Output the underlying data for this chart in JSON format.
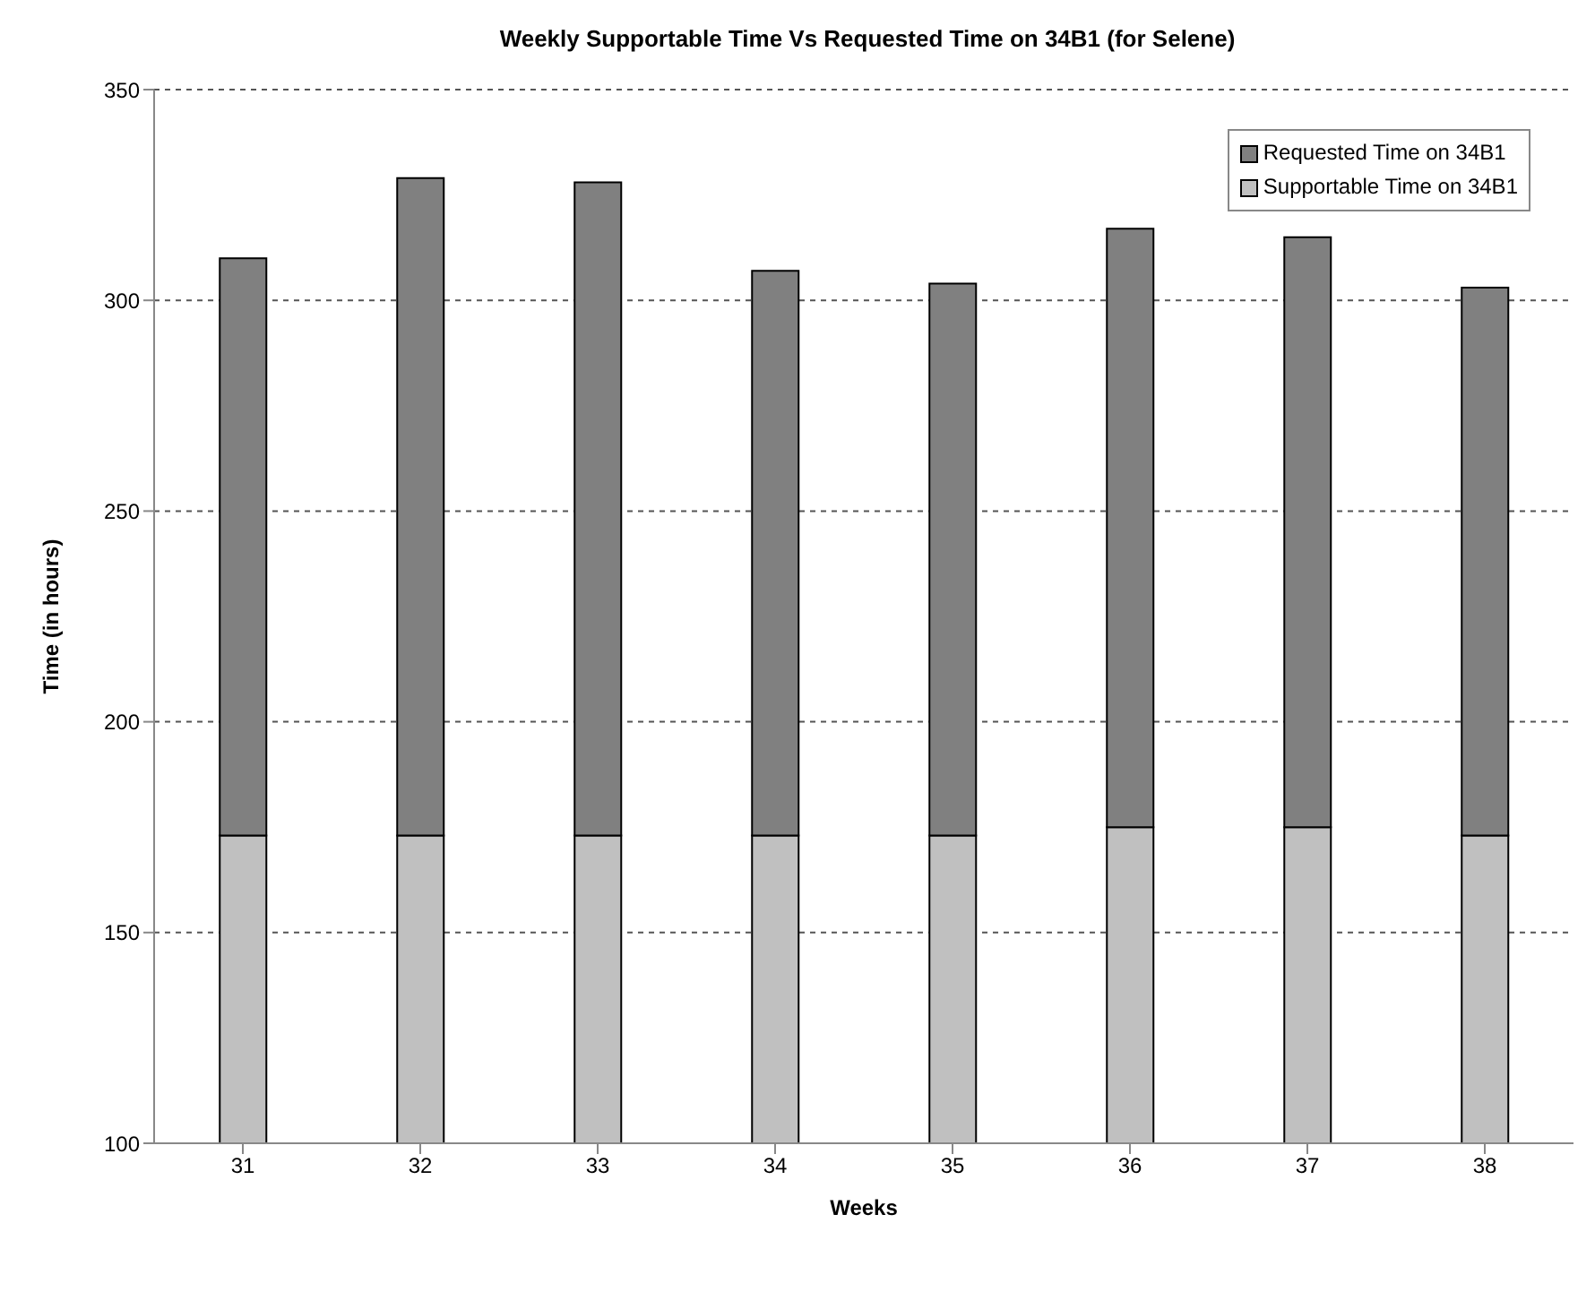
{
  "chart_data": {
    "type": "bar",
    "title": "Weekly Supportable Time Vs Requested Time on 34B1 (for Selene)",
    "xlabel": "Weeks",
    "ylabel": "Time (in hours)",
    "categories": [
      "31",
      "32",
      "33",
      "34",
      "35",
      "36",
      "37",
      "38"
    ],
    "stacked": true,
    "series": [
      {
        "name": "Supportable Time on 34B1",
        "color": "#c0c0c0",
        "values": [
          173,
          173,
          173,
          173,
          173,
          175,
          175,
          173
        ]
      },
      {
        "name": "Requested Time on 34B1",
        "color": "#808080",
        "values": [
          137,
          156,
          155,
          134,
          131,
          142,
          140,
          130
        ]
      }
    ],
    "ylim": [
      100,
      350
    ],
    "yticks": [
      100,
      150,
      200,
      250,
      300,
      350
    ],
    "grid": "y",
    "legend": "top right"
  }
}
